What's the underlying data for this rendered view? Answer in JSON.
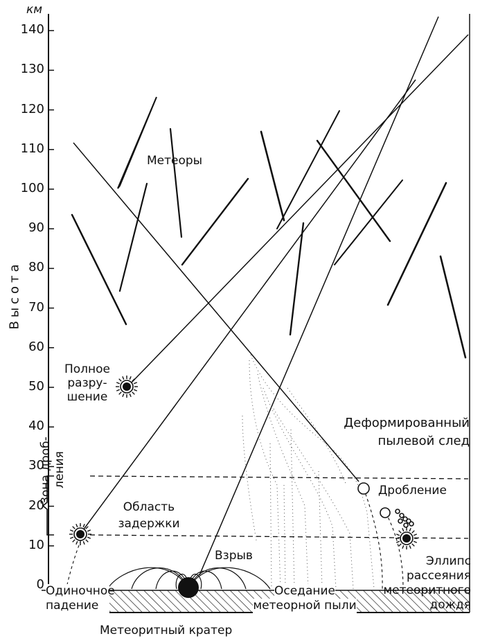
{
  "axis": {
    "unit": "км",
    "title": "Высота",
    "ticks": [
      "0",
      "10",
      "20",
      "30",
      "40",
      "50",
      "60",
      "70",
      "80",
      "90",
      "100",
      "110",
      "120",
      "130",
      "140"
    ]
  },
  "labels": {
    "meteors": "Метеоры",
    "full_destruction": [
      "Полное",
      "разру-",
      "шение"
    ],
    "deformed_trail": [
      "Деформированный",
      "пылевой след"
    ],
    "fragmentation_zone": [
      "Зона дроб-",
      "ления"
    ],
    "delay_region": [
      "Область",
      "задержки"
    ],
    "fragmentation": "Дробление",
    "explosion": "Взрыв",
    "scatter_ellipse": [
      "Эллипс",
      "рассеяния",
      "метеоритного",
      "дождя"
    ],
    "single_fall": [
      "Одиночное",
      "падение"
    ],
    "dust_settling": [
      "Оседание",
      "метеорной пыли"
    ],
    "crater": "Метеоритный кратер"
  },
  "colors": {
    "ink": "#111111",
    "paper": "#ffffff"
  }
}
